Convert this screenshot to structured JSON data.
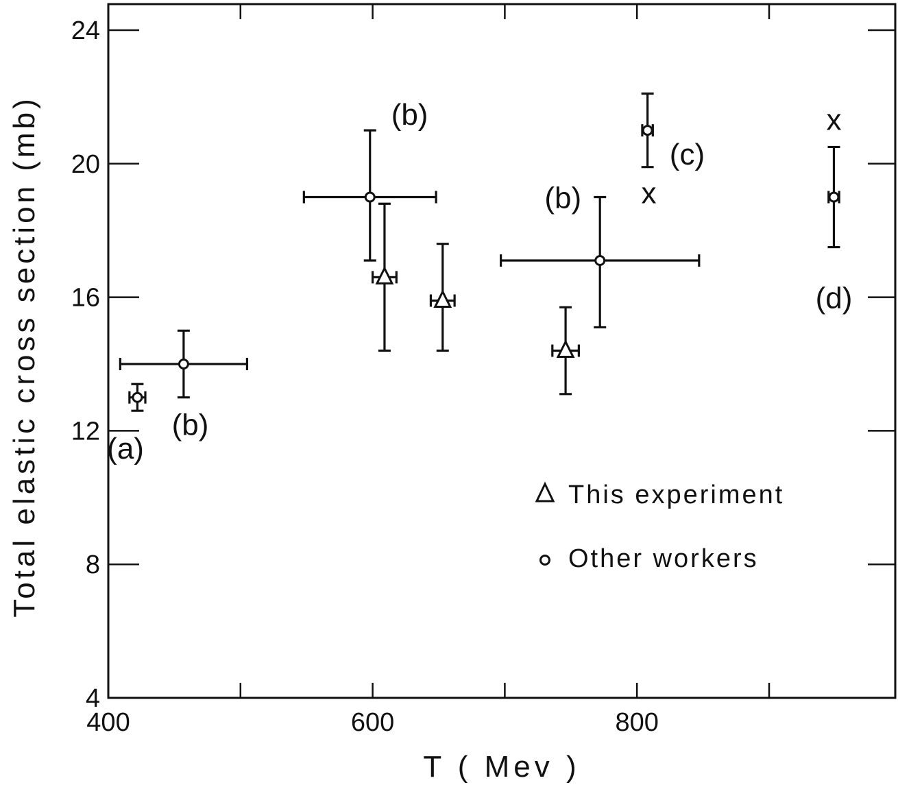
{
  "chart_data": {
    "type": "scatter",
    "xlabel": "T   ( Mev )",
    "ylabel": "Total elastic cross section   (mb)",
    "xlim": [
      400,
      1000
    ],
    "ylim": [
      4,
      25
    ],
    "x_ticks": [
      400,
      600,
      800
    ],
    "y_ticks": [
      4,
      8,
      12,
      16,
      20,
      24
    ],
    "grid": false,
    "legend_position": "bottom-right",
    "series": [
      {
        "name": "This experiment",
        "marker": "triangle",
        "points": [
          {
            "x": 609,
            "y": 16.6,
            "xerr": 9,
            "yerr_low": 2.2,
            "yerr_high": 2.2
          },
          {
            "x": 653,
            "y": 15.9,
            "xerr": 9,
            "yerr_low": 1.5,
            "yerr_high": 1.7
          },
          {
            "x": 746,
            "y": 14.4,
            "xerr": 10,
            "yerr_low": 1.3,
            "yerr_high": 1.3
          }
        ]
      },
      {
        "name": "Other workers",
        "marker": "circle",
        "points": [
          {
            "x": 422,
            "y": 13.0,
            "xerr": 6,
            "yerr_low": 0.4,
            "yerr_high": 0.4
          },
          {
            "x": 457,
            "y": 14.0,
            "xerr": 48,
            "yerr_low": 1.0,
            "yerr_high": 1.0
          },
          {
            "x": 598,
            "y": 19.0,
            "xerr": 50,
            "yerr_low": 1.9,
            "yerr_high": 2.0
          },
          {
            "x": 772,
            "y": 17.1,
            "xerr": 75,
            "yerr_low": 2.0,
            "yerr_high": 1.9
          },
          {
            "x": 808,
            "y": 21.0,
            "xerr": 4,
            "yerr_low": 1.1,
            "yerr_high": 1.1
          },
          {
            "x": 949,
            "y": 19.0,
            "xerr": 4,
            "yerr_low": 1.5,
            "yerr_high": 1.5
          }
        ]
      }
    ],
    "cross_markers": [
      {
        "x": 809,
        "y": 19.1,
        "text": "x"
      },
      {
        "x": 949,
        "y": 21.3,
        "text": "x"
      }
    ],
    "annotations": [
      {
        "text": "(a)",
        "x": 413,
        "y": 11.5
      },
      {
        "text": "(b)",
        "x": 462,
        "y": 12.2
      },
      {
        "text": "(b)",
        "x": 628,
        "y": 21.5
      },
      {
        "text": "(b)",
        "x": 744,
        "y": 19.0
      },
      {
        "text": "(c)",
        "x": 838,
        "y": 20.3
      },
      {
        "text": "(d)",
        "x": 949,
        "y": 16.0
      }
    ],
    "legend": [
      {
        "marker": "triangle",
        "label": "This experiment"
      },
      {
        "marker": "circle",
        "label": "Other workers"
      }
    ]
  }
}
